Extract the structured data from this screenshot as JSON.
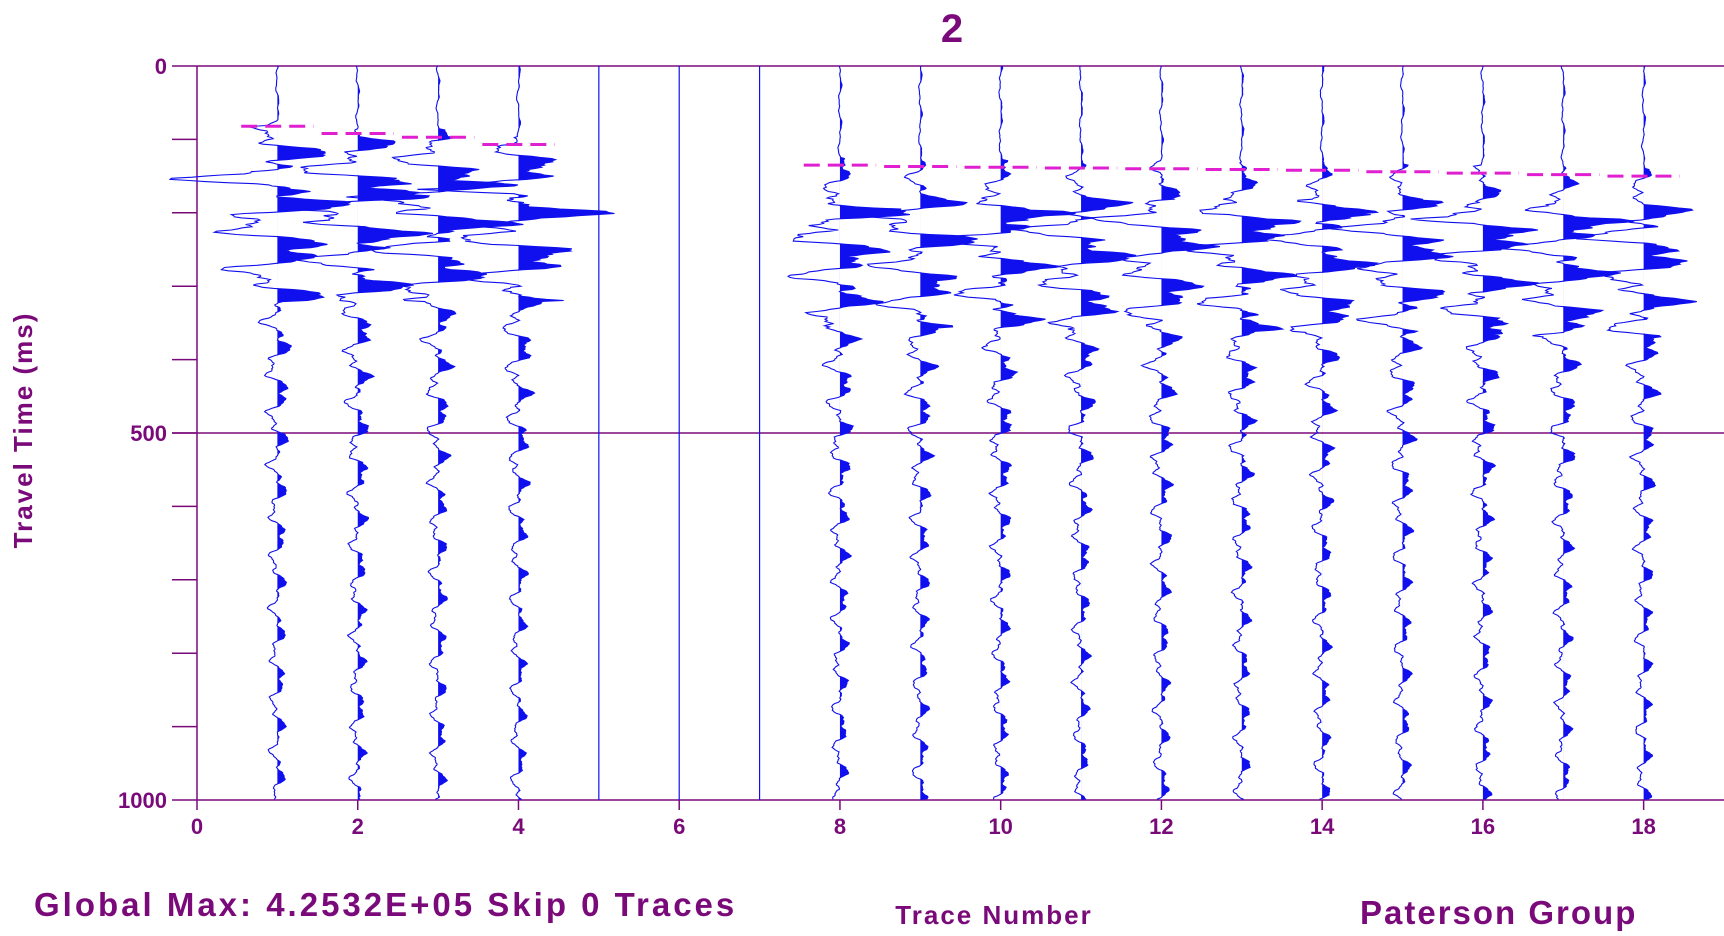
{
  "chart_data": {
    "type": "seismic-wiggle",
    "title": "2",
    "xlabel": "Trace Number",
    "ylabel": "Travel Time (ms)",
    "xlim": [
      0,
      19
    ],
    "ylim": [
      0,
      1000
    ],
    "y_reversed": true,
    "x_ticks": [
      0,
      2,
      4,
      6,
      8,
      10,
      12,
      14,
      16,
      18
    ],
    "y_ticks_labeled": [
      0,
      500,
      1000
    ],
    "y_minor_ticks": [
      100,
      200,
      300,
      400,
      600,
      700,
      800,
      900
    ],
    "traces_present": [
      1,
      2,
      3,
      4,
      8,
      9,
      10,
      11,
      12,
      13,
      14,
      15,
      16,
      17,
      18
    ],
    "blank_traces": [
      5,
      6,
      7
    ],
    "first_break_picks_ms": {
      "1": 82,
      "2": 92,
      "3": 97,
      "4": 107,
      "8": 135,
      "9": 137,
      "10": 138,
      "11": 139,
      "12": 140,
      "13": 141,
      "14": 142,
      "15": 144,
      "16": 146,
      "17": 148,
      "18": 150
    },
    "trace_color": "#1010ee",
    "pick_color": "#e020d0",
    "axis_color": "#7a0a7a",
    "grid_lines_ms": [
      500
    ]
  },
  "footer": {
    "left": "Global Max: 4.2532E+05 Skip 0 Traces",
    "right": "Paterson Group"
  }
}
